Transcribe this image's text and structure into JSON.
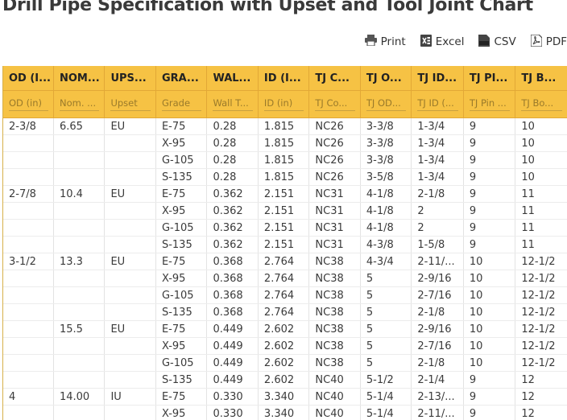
{
  "page": {
    "title": "Drill Pipe Specification with Upset and Tool Joint Chart"
  },
  "toolbar": {
    "print": "Print",
    "excel": "Excel",
    "csv": "CSV",
    "pdf": "PDF"
  },
  "table": {
    "headers": [
      "OD (I...",
      "NOM...",
      "UPS...",
      "GRA...",
      "WAL...",
      "ID (I...",
      "TJ C...",
      "TJ O...",
      "TJ ID...",
      "TJ PI...",
      "TJ B..."
    ],
    "filters": [
      "OD (in)",
      "Nom. ...",
      "Upset",
      "Grade",
      "Wall T...",
      "ID (in)",
      "TJ Co...",
      "TJ OD...",
      "TJ ID (...",
      "TJ Pin ...",
      "TJ Bo..."
    ],
    "rows": [
      [
        "2-3/8",
        "6.65",
        "EU",
        "E-75",
        "0.28",
        "1.815",
        "NC26",
        "3-3/8",
        "1-3/4",
        "9",
        "10"
      ],
      [
        "",
        "",
        "",
        "X-95",
        "0.28",
        "1.815",
        "NC26",
        "3-3/8",
        "1-3/4",
        "9",
        "10"
      ],
      [
        "",
        "",
        "",
        "G-105",
        "0.28",
        "1.815",
        "NC26",
        "3-3/8",
        "1-3/4",
        "9",
        "10"
      ],
      [
        "",
        "",
        "",
        "S-135",
        "0.28",
        "1.815",
        "NC26",
        "3-5/8",
        "1-3/4",
        "9",
        "10"
      ],
      [
        "2-7/8",
        "10.4",
        "EU",
        "E-75",
        "0.362",
        "2.151",
        "NC31",
        "4-1/8",
        "2-1/8",
        "9",
        "11"
      ],
      [
        "",
        "",
        "",
        "X-95",
        "0.362",
        "2.151",
        "NC31",
        "4-1/8",
        "2",
        "9",
        "11"
      ],
      [
        "",
        "",
        "",
        "G-105",
        "0.362",
        "2.151",
        "NC31",
        "4-1/8",
        "2",
        "9",
        "11"
      ],
      [
        "",
        "",
        "",
        "S-135",
        "0.362",
        "2.151",
        "NC31",
        "4-3/8",
        "1-5/8",
        "9",
        "11"
      ],
      [
        "3-1/2",
        "13.3",
        "EU",
        "E-75",
        "0.368",
        "2.764",
        "NC38",
        "4-3/4",
        "2-11/...",
        "10",
        "12-1/2"
      ],
      [
        "",
        "",
        "",
        "X-95",
        "0.368",
        "2.764",
        "NC38",
        "5",
        "2-9/16",
        "10",
        "12-1/2"
      ],
      [
        "",
        "",
        "",
        "G-105",
        "0.368",
        "2.764",
        "NC38",
        "5",
        "2-7/16",
        "10",
        "12-1/2"
      ],
      [
        "",
        "",
        "",
        "S-135",
        "0.368",
        "2.764",
        "NC38",
        "5",
        "2-1/8",
        "10",
        "12-1/2"
      ],
      [
        "",
        "15.5",
        "EU",
        "E-75",
        "0.449",
        "2.602",
        "NC38",
        "5",
        "2-9/16",
        "10",
        "12-1/2"
      ],
      [
        "",
        "",
        "",
        "X-95",
        "0.449",
        "2.602",
        "NC38",
        "5",
        "2-7/16",
        "10",
        "12-1/2"
      ],
      [
        "",
        "",
        "",
        "G-105",
        "0.449",
        "2.602",
        "NC38",
        "5",
        "2-1/8",
        "10",
        "12-1/2"
      ],
      [
        "",
        "",
        "",
        "S-135",
        "0.449",
        "2.602",
        "NC40",
        "5-1/2",
        "2-1/4",
        "9",
        "12"
      ],
      [
        "4",
        "14.00",
        "IU",
        "E-75",
        "0.330",
        "3.340",
        "NC40",
        "5-1/4",
        "2-13/...",
        "9",
        "12"
      ],
      [
        "",
        "",
        "",
        "X-95",
        "0.330",
        "3.340",
        "NC40",
        "5-1/4",
        "2-11/...",
        "9",
        "12"
      ]
    ]
  }
}
